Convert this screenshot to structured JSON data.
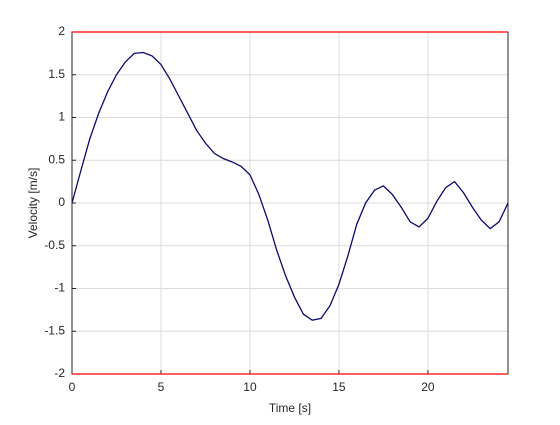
{
  "chart_data": {
    "type": "line",
    "xlabel": "Time [s]",
    "ylabel": "Velocity [m/s]",
    "xlim": [
      0,
      24.5
    ],
    "ylim": [
      -2,
      2
    ],
    "xticks": [
      0,
      5,
      10,
      15,
      20
    ],
    "yticks": [
      -2,
      -1.5,
      -1,
      -0.5,
      0,
      0.5,
      1,
      1.5,
      2
    ],
    "grid": true,
    "series": [
      {
        "color": "#ff0000",
        "x": [
          0,
          24.5
        ],
        "values": [
          2,
          2
        ]
      },
      {
        "color": "#ff0000",
        "x": [
          0,
          24.5
        ],
        "values": [
          -2,
          -2
        ]
      },
      {
        "color": "#0a0a6e",
        "x": [
          0,
          0.5,
          1,
          1.5,
          2,
          2.5,
          3,
          3.5,
          4,
          4.5,
          5,
          5.5,
          6,
          6.5,
          7,
          7.5,
          8,
          8.5,
          9,
          9.5,
          10,
          10.5,
          11,
          11.5,
          12,
          12.5,
          13,
          13.5,
          14,
          14.5,
          15,
          15.5,
          16,
          16.5,
          17,
          17.5,
          18,
          18.5,
          19,
          19.5,
          20,
          20.5,
          21,
          21.5,
          22,
          22.5,
          23,
          23.5,
          24,
          24.5
        ],
        "values": [
          0,
          0.38,
          0.75,
          1.05,
          1.3,
          1.5,
          1.65,
          1.75,
          1.76,
          1.72,
          1.62,
          1.45,
          1.25,
          1.05,
          0.85,
          0.7,
          0.58,
          0.52,
          0.48,
          0.43,
          0.33,
          0.1,
          -0.2,
          -0.55,
          -0.85,
          -1.1,
          -1.3,
          -1.37,
          -1.35,
          -1.2,
          -0.95,
          -0.62,
          -0.25,
          0.0,
          0.15,
          0.2,
          0.1,
          -0.05,
          -0.22,
          -0.28,
          -0.18,
          0.02,
          0.18,
          0.25,
          0.12,
          -0.05,
          -0.2,
          -0.3,
          -0.22,
          0
        ]
      }
    ]
  }
}
